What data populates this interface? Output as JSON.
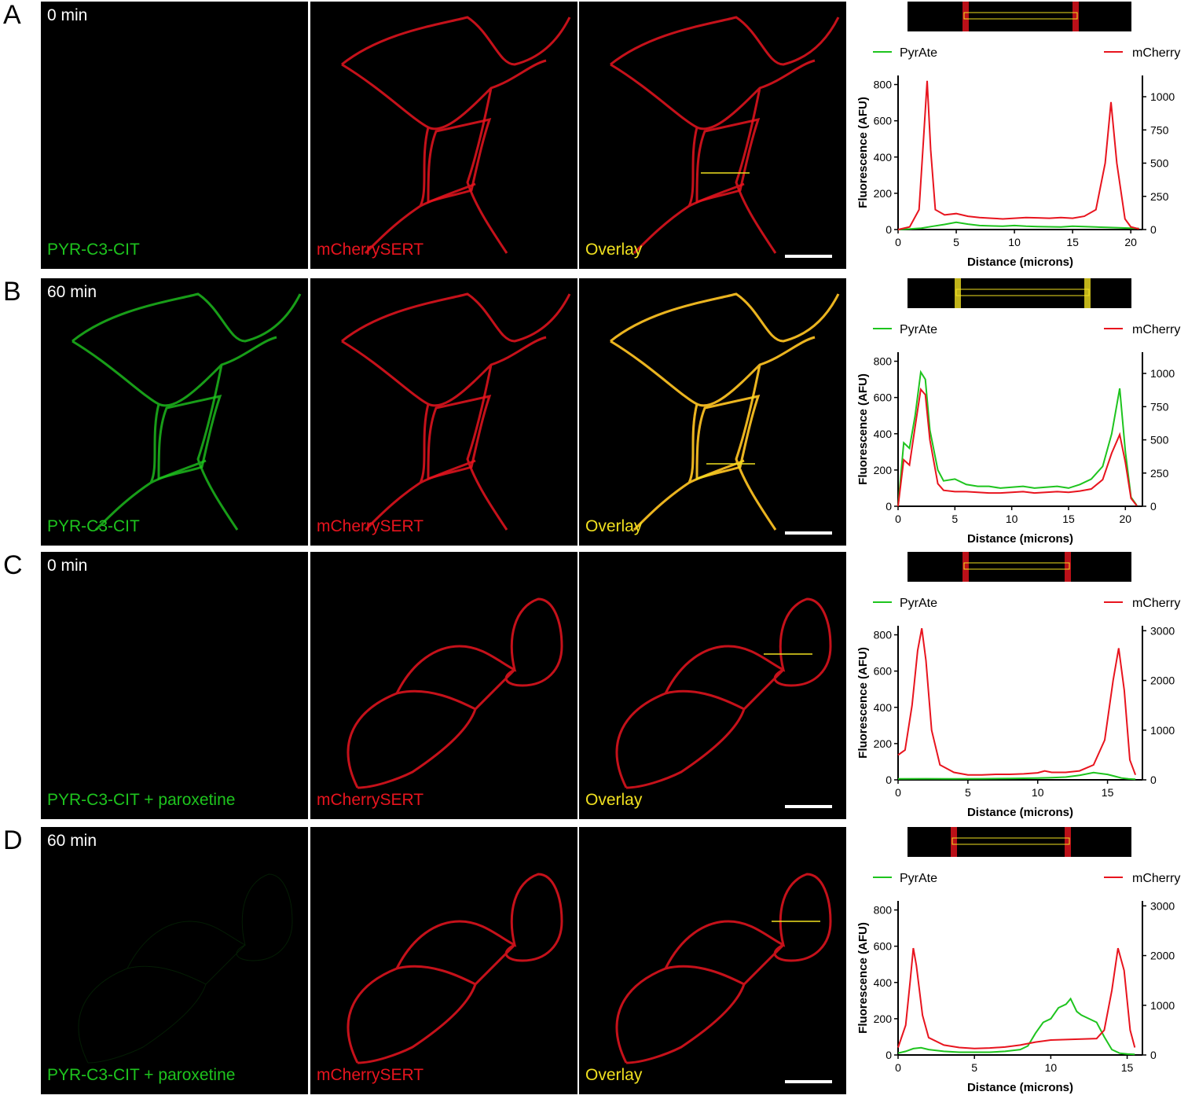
{
  "colors": {
    "green": "#1ec41e",
    "red": "#e8141e",
    "yellow": "#f0e020",
    "white": "#ffffff"
  },
  "channel_labels": {
    "mcherry": "mCherrySERT",
    "overlay": "Overlay"
  },
  "rows": [
    {
      "letter": "A",
      "time": "0 min",
      "green_label": "PYR-C3-CIT",
      "chart": {
        "legend_left": "PyrAte",
        "legend_right": "mCherry",
        "ylabel": "Fluorescence (AFU)",
        "xlabel": "Distance (microns)",
        "xticks": [
          "0",
          "5",
          "10",
          "15",
          "20"
        ],
        "yticks_left": [
          "0",
          "200",
          "400",
          "600",
          "800"
        ],
        "yticks_right": [
          "0",
          "250",
          "500",
          "750",
          "1000"
        ]
      }
    },
    {
      "letter": "B",
      "time": "60 min",
      "green_label": "PYR-C3-CIT",
      "chart": {
        "legend_left": "PyrAte",
        "legend_right": "mCherry",
        "ylabel": "Fluorescence (AFU)",
        "xlabel": "Distance (microns)",
        "xticks": [
          "0",
          "5",
          "10",
          "15",
          "20"
        ],
        "yticks_left": [
          "0",
          "200",
          "400",
          "600",
          "800"
        ],
        "yticks_right": [
          "0",
          "250",
          "500",
          "750",
          "1000"
        ]
      }
    },
    {
      "letter": "C",
      "time": "0 min",
      "green_label": "PYR-C3-CIT + paroxetine",
      "chart": {
        "legend_left": "PyrAte",
        "legend_right": "mCherry",
        "ylabel": "Fluorescence (AFU)",
        "xlabel": "Distance (microns)",
        "xticks": [
          "0",
          "5",
          "10",
          "15"
        ],
        "yticks_left": [
          "0",
          "200",
          "400",
          "600",
          "800"
        ],
        "yticks_right": [
          "0",
          "1000",
          "2000",
          "3000"
        ]
      }
    },
    {
      "letter": "D",
      "time": "60 min",
      "green_label": "PYR-C3-CIT + paroxetine",
      "chart": {
        "legend_left": "PyrAte",
        "legend_right": "mCherry",
        "ylabel": "Fluorescence (AFU)",
        "xlabel": "Distance (microns)",
        "xticks": [
          "0",
          "5",
          "10",
          "15"
        ],
        "yticks_left": [
          "0",
          "200",
          "400",
          "600",
          "800"
        ],
        "yticks_right": [
          "0",
          "1000",
          "2000",
          "3000"
        ]
      }
    }
  ],
  "chart_data": [
    {
      "type": "line",
      "panel": "A",
      "xlabel": "Distance (microns)",
      "ylabel": "Fluorescence (AFU)",
      "xlim": [
        0,
        21
      ],
      "ylim_left": [
        0,
        850
      ],
      "ylim_right": [
        0,
        1160
      ],
      "series": [
        {
          "name": "PyrAte",
          "axis": "left",
          "color": "#1ec41e",
          "x": [
            0,
            1,
            2,
            3,
            4,
            5,
            6,
            7,
            8,
            9,
            10,
            11,
            12,
            13,
            14,
            15,
            16,
            17,
            18,
            19,
            20,
            20.7
          ],
          "y": [
            0,
            3,
            8,
            18,
            28,
            40,
            30,
            22,
            20,
            18,
            22,
            18,
            16,
            15,
            14,
            18,
            16,
            14,
            12,
            10,
            8,
            6
          ]
        },
        {
          "name": "mCherry",
          "axis": "right",
          "color": "#e8141e",
          "x": [
            0,
            1,
            1.8,
            2.2,
            2.5,
            2.8,
            3.2,
            4,
            5,
            6,
            7,
            8,
            9,
            10,
            11,
            12,
            13,
            14,
            15,
            16,
            17,
            17.8,
            18.3,
            18.8,
            19.5,
            20,
            20.7
          ],
          "y": [
            0,
            20,
            150,
            700,
            1120,
            600,
            150,
            110,
            120,
            100,
            90,
            85,
            80,
            85,
            90,
            88,
            85,
            90,
            85,
            100,
            150,
            500,
            960,
            500,
            80,
            20,
            5
          ]
        }
      ]
    },
    {
      "type": "line",
      "panel": "B",
      "xlabel": "Distance (microns)",
      "ylabel": "Fluorescence (AFU)",
      "xlim": [
        0,
        21.5
      ],
      "ylim_left": [
        0,
        850
      ],
      "ylim_right": [
        0,
        1160
      ],
      "series": [
        {
          "name": "PyrAte",
          "axis": "left",
          "color": "#1ec41e",
          "x": [
            0,
            0.5,
            1,
            1.5,
            2,
            2.4,
            2.8,
            3.5,
            4,
            5,
            6,
            7,
            8,
            9,
            10,
            11,
            12,
            13,
            14,
            15,
            16,
            17,
            18,
            18.8,
            19.5,
            20,
            20.5,
            21
          ],
          "y": [
            0,
            350,
            320,
            500,
            740,
            700,
            420,
            200,
            140,
            150,
            120,
            110,
            110,
            100,
            105,
            110,
            100,
            105,
            110,
            100,
            120,
            150,
            220,
            400,
            650,
            300,
            50,
            5
          ]
        },
        {
          "name": "mCherry",
          "axis": "right",
          "color": "#e8141e",
          "x": [
            0,
            0.5,
            1,
            1.5,
            2,
            2.4,
            2.8,
            3.5,
            4,
            5,
            6,
            7,
            8,
            9,
            10,
            11,
            12,
            13,
            14,
            15,
            16,
            17,
            18,
            18.8,
            19.5,
            20,
            20.5,
            21
          ],
          "y": [
            0,
            350,
            310,
            600,
            880,
            840,
            500,
            170,
            120,
            110,
            110,
            105,
            100,
            100,
            105,
            110,
            100,
            105,
            110,
            105,
            115,
            130,
            200,
            400,
            540,
            330,
            60,
            5
          ]
        }
      ]
    },
    {
      "type": "line",
      "panel": "C",
      "xlabel": "Distance (microns)",
      "ylabel": "Fluorescence (AFU)",
      "xlim": [
        0,
        17.5
      ],
      "ylim_left": [
        0,
        850
      ],
      "ylim_right": [
        0,
        3100
      ],
      "series": [
        {
          "name": "PyrAte",
          "axis": "left",
          "color": "#1ec41e",
          "x": [
            0,
            2,
            4,
            6,
            8,
            10,
            11,
            12,
            13,
            14,
            15,
            15.5,
            16,
            16.5,
            17
          ],
          "y": [
            5,
            6,
            5,
            6,
            8,
            10,
            12,
            15,
            25,
            40,
            30,
            20,
            10,
            5,
            3
          ]
        },
        {
          "name": "mCherry",
          "axis": "right",
          "color": "#e8141e",
          "x": [
            0,
            0.5,
            1,
            1.4,
            1.7,
            2,
            2.4,
            3,
            4,
            5,
            6,
            7,
            8,
            9,
            10,
            10.5,
            11,
            12,
            13,
            14,
            14.8,
            15.4,
            15.8,
            16.2,
            16.6,
            17
          ],
          "y": [
            500,
            600,
            1500,
            2600,
            3050,
            2400,
            1000,
            300,
            150,
            100,
            100,
            110,
            110,
            120,
            140,
            180,
            150,
            150,
            180,
            300,
            800,
            2000,
            2650,
            1800,
            400,
            100
          ]
        }
      ]
    },
    {
      "type": "line",
      "panel": "D",
      "xlabel": "Distance (microns)",
      "ylabel": "Fluorescence (AFU)",
      "xlim": [
        0,
        16
      ],
      "ylim_left": [
        0,
        850
      ],
      "ylim_right": [
        0,
        3100
      ],
      "series": [
        {
          "name": "PyrAte",
          "axis": "left",
          "color": "#1ec41e",
          "x": [
            0,
            0.5,
            1,
            1.5,
            2,
            3,
            4,
            5,
            6,
            7,
            8,
            8.5,
            9,
            9.5,
            10,
            10.5,
            11,
            11.3,
            11.7,
            12,
            12.5,
            13,
            13.5,
            14,
            14.5,
            15,
            15.5
          ],
          "y": [
            10,
            20,
            35,
            40,
            30,
            20,
            15,
            15,
            15,
            20,
            30,
            50,
            120,
            180,
            200,
            260,
            280,
            310,
            240,
            220,
            200,
            180,
            100,
            30,
            10,
            5,
            3
          ]
        },
        {
          "name": "mCherry",
          "axis": "right",
          "color": "#e8141e",
          "x": [
            0,
            0.5,
            0.8,
            1,
            1.2,
            1.6,
            2,
            3,
            4,
            5,
            6,
            7,
            8,
            9,
            10,
            11,
            12,
            13,
            13.5,
            14,
            14.4,
            14.8,
            15.2,
            15.5
          ],
          "y": [
            150,
            600,
            1500,
            2150,
            1800,
            800,
            350,
            200,
            150,
            130,
            140,
            160,
            200,
            260,
            300,
            310,
            320,
            330,
            500,
            1300,
            2150,
            1700,
            500,
            150
          ]
        }
      ]
    }
  ]
}
